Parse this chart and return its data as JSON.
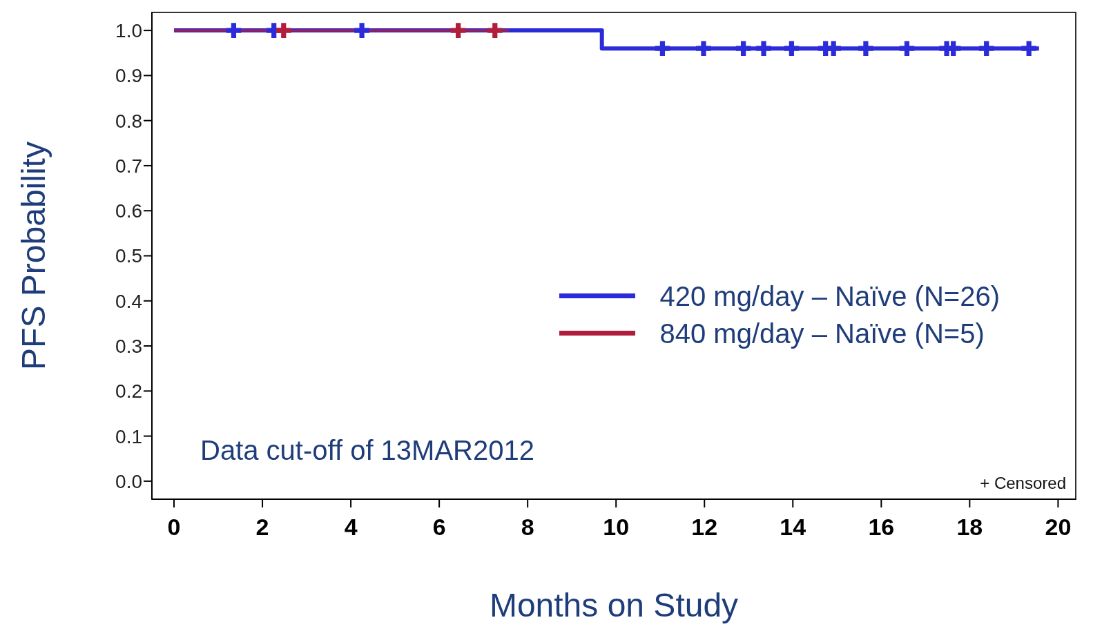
{
  "chart_data": {
    "type": "step",
    "xlabel": "Months on Study",
    "ylabel": "PFS Probability",
    "xlim": [
      -0.5,
      20.4
    ],
    "xticks": [
      0,
      2,
      4,
      6,
      8,
      10,
      12,
      14,
      16,
      18,
      20
    ],
    "ylim": [
      -0.04,
      1.04
    ],
    "yticks": [
      {
        "value": 0,
        "label": "0.0"
      },
      {
        "value": 0.1,
        "label": "0.1"
      },
      {
        "value": 0.2,
        "label": "0.2"
      },
      {
        "value": 0.3,
        "label": "0.3"
      },
      {
        "value": 0.4,
        "label": "0.4"
      },
      {
        "value": 0.5,
        "label": "0.5"
      },
      {
        "value": 0.6,
        "label": "0.6"
      },
      {
        "value": 0.7,
        "label": "0.7"
      },
      {
        "value": 0.8,
        "label": "0.8"
      },
      {
        "value": 0.9,
        "label": "0.9"
      },
      {
        "value": 1,
        "label": "1.0"
      }
    ],
    "series": [
      {
        "name": "420 mg/day – Naïve (N=26)",
        "color": "#2b2bd9",
        "x": [
          0,
          9.68,
          19.57
        ],
        "values": [
          1,
          0.96,
          0.96
        ]
      },
      {
        "name": "840 mg/day – Naïve (N=5)",
        "color": "#b01e3c",
        "x": [
          0,
          7.58
        ],
        "values": [
          1,
          1
        ]
      },
      {
        "type": "scatter",
        "marker": "cross",
        "color": "#2b2bd9",
        "x": [
          1.35,
          2.26,
          4.25,
          11.05,
          11.98,
          12.88,
          13.34,
          13.97,
          14.74,
          14.92,
          15.65,
          16.58,
          17.48,
          17.63,
          18.38,
          19.34
        ],
        "values": [
          1,
          1,
          1,
          0.96,
          0.96,
          0.96,
          0.96,
          0.96,
          0.96,
          0.96,
          0.96,
          0.96,
          0.96,
          0.96,
          0.96,
          0.96
        ]
      },
      {
        "type": "scatter",
        "marker": "cross",
        "color": "#b01e3c",
        "x": [
          2.48,
          6.43,
          7.26
        ],
        "values": [
          1,
          1,
          1
        ]
      }
    ],
    "legend": "right",
    "grid": false,
    "annotations": [
      "Data cut-off of 13MAR2012",
      "+ Censored"
    ]
  }
}
